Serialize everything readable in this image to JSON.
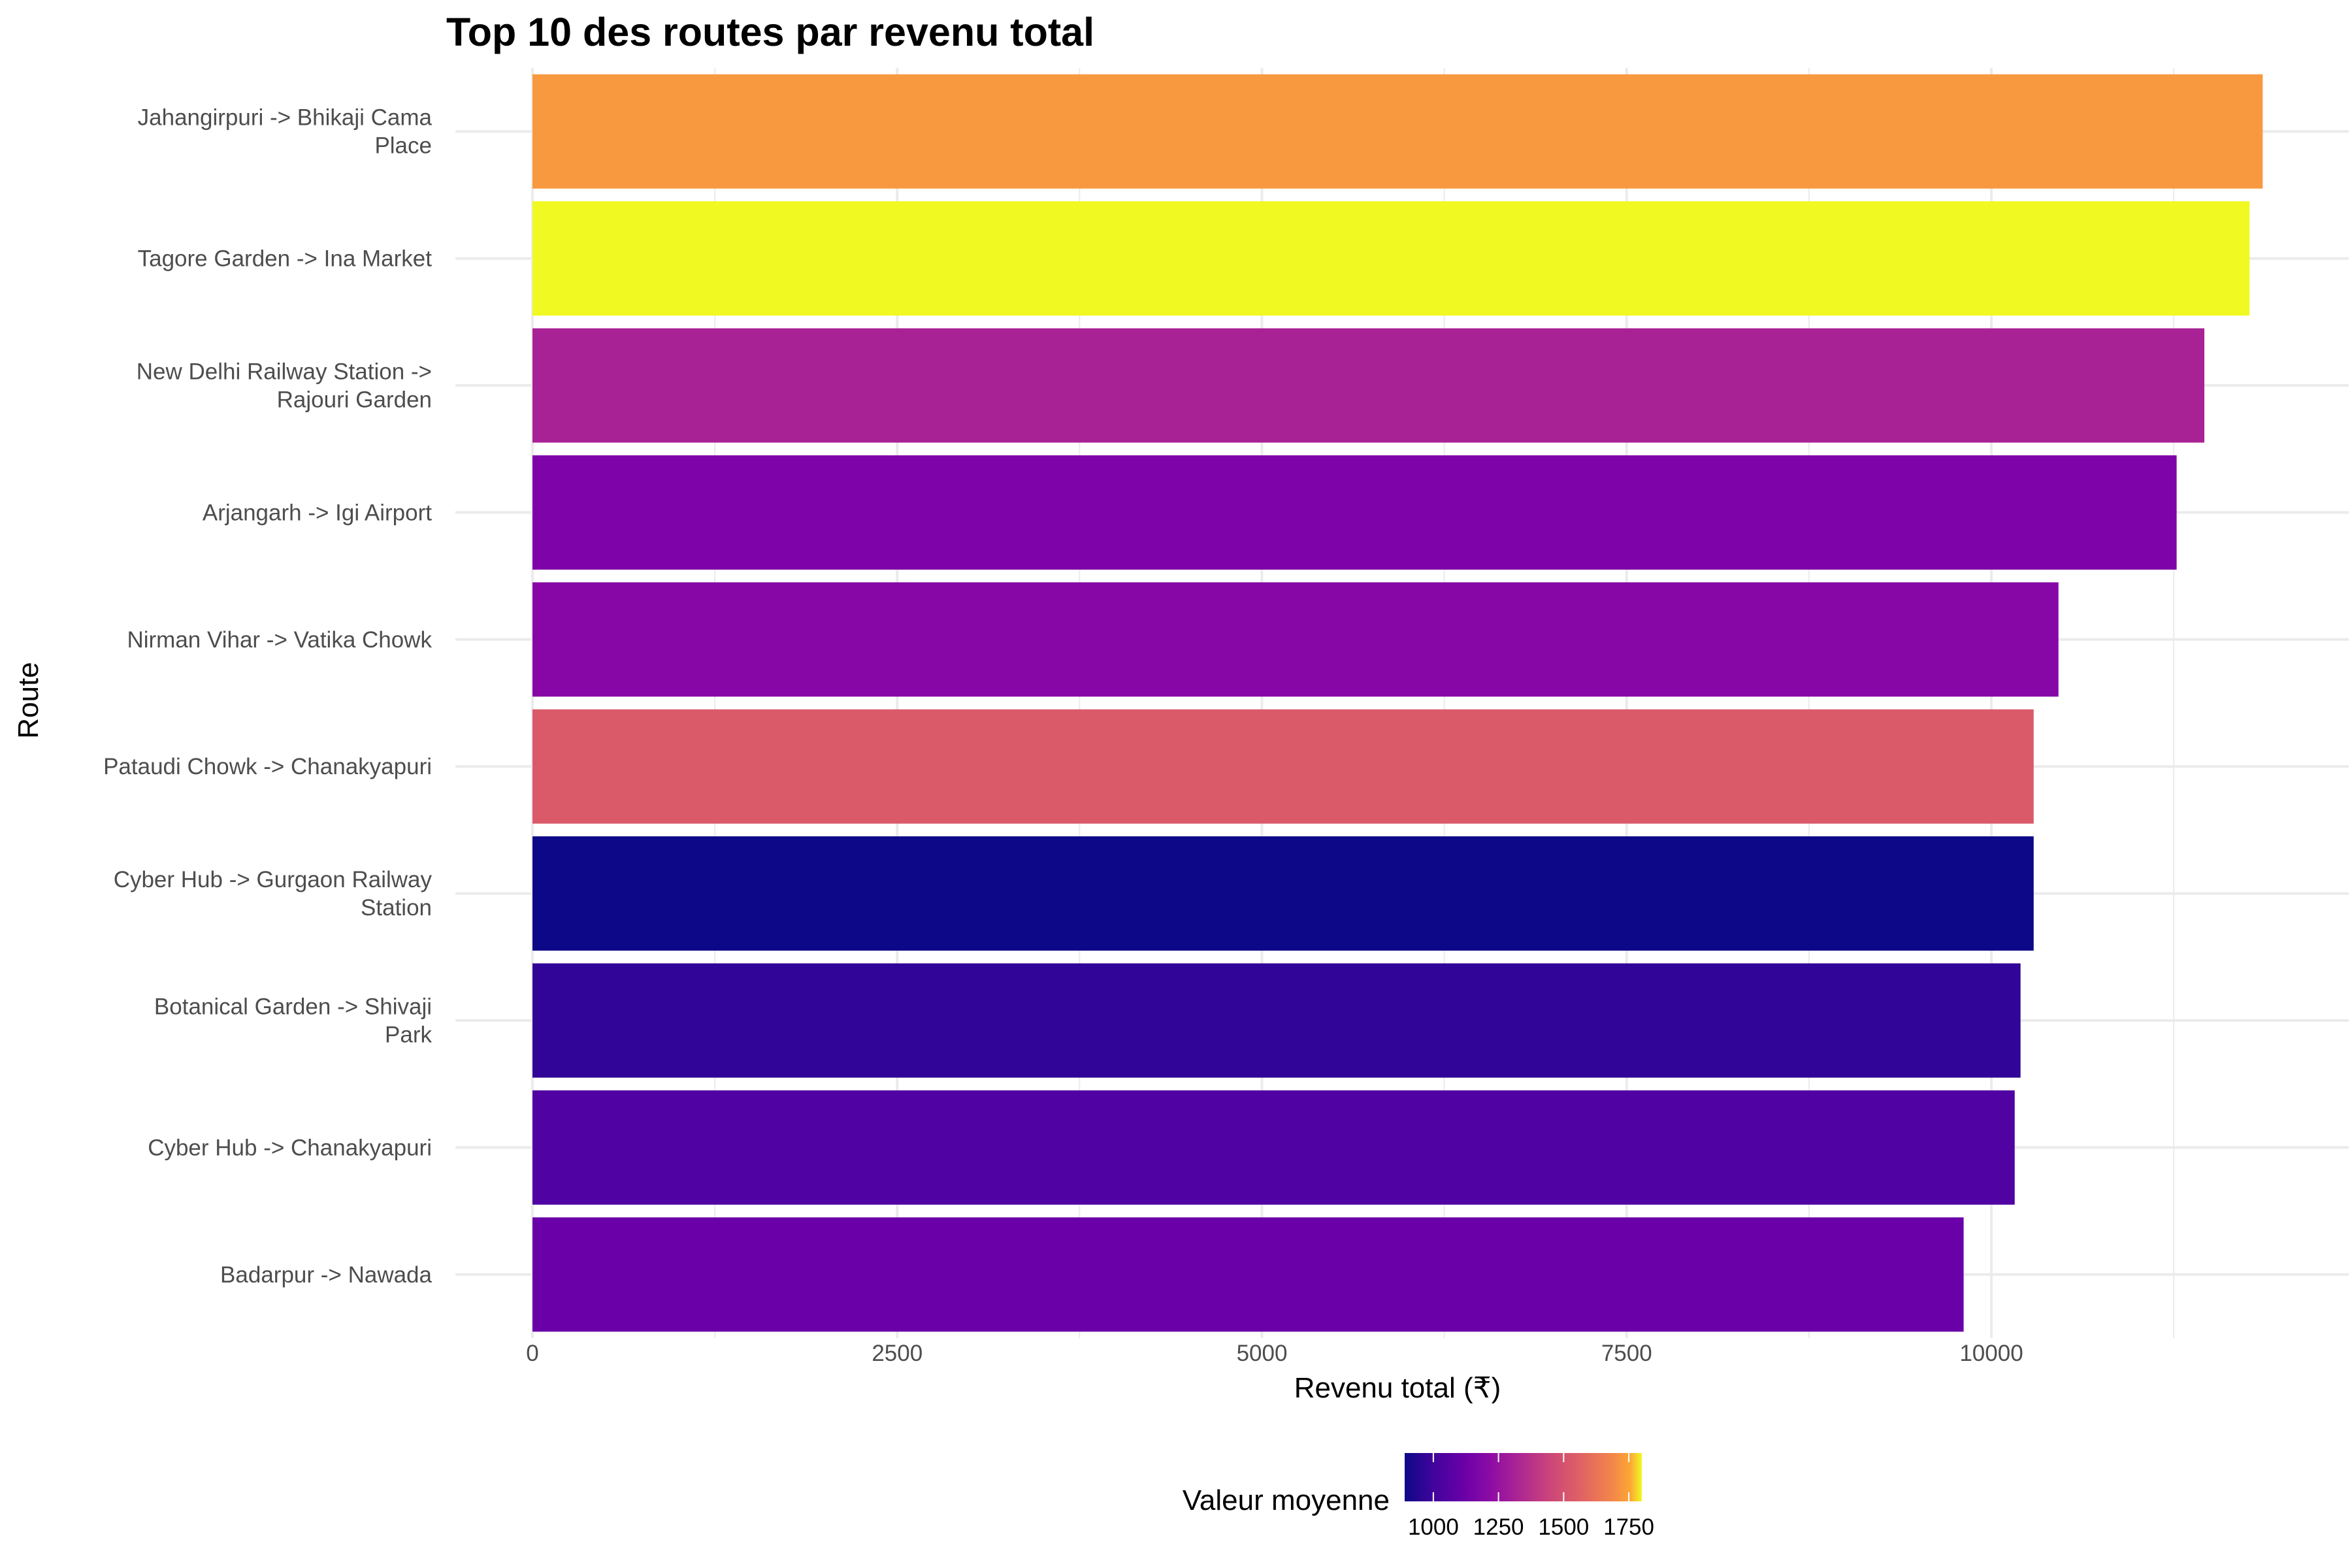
{
  "chart_data": {
    "type": "bar",
    "orientation": "horizontal",
    "title": "Top 10 des routes par revenu total",
    "xlabel": "Revenu total (₹)",
    "ylabel": "Route",
    "xlim": [
      0,
      12150
    ],
    "x_ticks": [
      0,
      2500,
      5000,
      7500,
      10000
    ],
    "x_tick_labels": [
      "0",
      "2500",
      "5000",
      "7500",
      "10000"
    ],
    "grid": true,
    "legend": {
      "title": "Valeur moyenne",
      "type": "continuous-colorbar",
      "placement": "bottom",
      "palette": "plasma",
      "range": [
        890,
        1800
      ],
      "ticks": [
        1000,
        1250,
        1500,
        1750
      ],
      "tick_labels": [
        "1000",
        "1250",
        "1500",
        "1750"
      ]
    },
    "categories": [
      [
        "Jahangirpuri -> Bhikaji Cama",
        "Place"
      ],
      [
        "Tagore Garden -> Ina Market"
      ],
      [
        "New Delhi Railway Station ->",
        "Rajouri Garden"
      ],
      [
        "Arjangarh -> Igi Airport"
      ],
      [
        "Nirman Vihar -> Vatika Chowk"
      ],
      [
        "Pataudi Chowk -> Chanakyapuri"
      ],
      [
        "Cyber Hub -> Gurgaon Railway",
        "Station"
      ],
      [
        "Botanical Garden -> Shivaji",
        "Park"
      ],
      [
        "Cyber Hub -> Chanakyapuri"
      ],
      [
        "Badarpur -> Nawada"
      ]
    ],
    "values": [
      11860,
      11770,
      11460,
      11270,
      10460,
      10290,
      10290,
      10200,
      10160,
      9810
    ],
    "colors": [
      "#f89940",
      "#f0f921",
      "#a82296",
      "#7e03a8",
      "#8606a6",
      "#da5a6a",
      "#0d0887",
      "#310597",
      "#5102a3",
      "#6a00a8"
    ]
  }
}
